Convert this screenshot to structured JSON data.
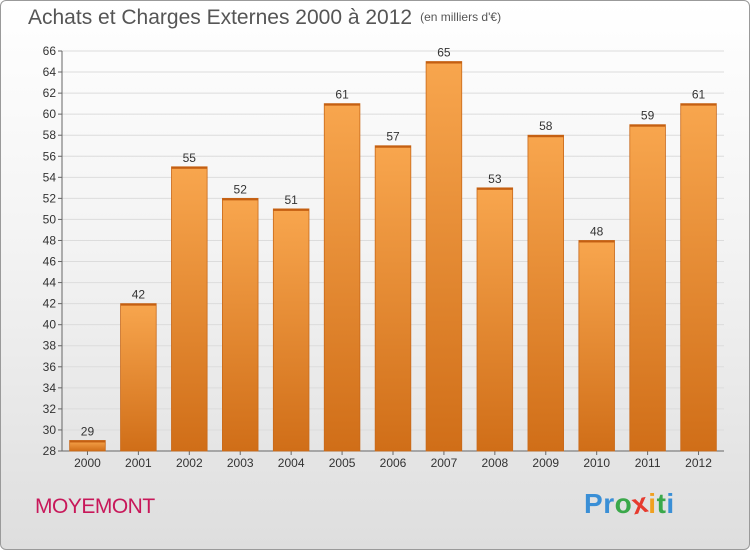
{
  "title": "Achats et Charges Externes 2000 à 2012",
  "subtitle": "(en milliers d'€)",
  "town": "MOYEMONT",
  "logo": {
    "text": "Proxiti",
    "letters": [
      {
        "ch": "P",
        "color": "#3a8fd6"
      },
      {
        "ch": "r",
        "color": "#3a8fd6"
      },
      {
        "ch": "o",
        "color": "#3aa84a"
      },
      {
        "ch": "x",
        "color": "#e63a2e"
      },
      {
        "ch": "i",
        "color": "#f0a020"
      },
      {
        "ch": "t",
        "color": "#3aa84a"
      },
      {
        "ch": "i",
        "color": "#3a8fd6"
      }
    ]
  },
  "colors": {
    "bar_light": "#f8a64e",
    "bar_dark": "#d06e18",
    "grid": "#dcdcdc",
    "axis_text": "#333333",
    "title": "#555555",
    "town": "#c8185a"
  },
  "chart_data": {
    "type": "bar",
    "categories": [
      "2000",
      "2001",
      "2002",
      "2003",
      "2004",
      "2005",
      "2006",
      "2007",
      "2008",
      "2009",
      "2010",
      "2011",
      "2012"
    ],
    "values": [
      29,
      42,
      55,
      52,
      51,
      61,
      57,
      65,
      53,
      58,
      48,
      59,
      61
    ],
    "title": "Achats et Charges Externes 2000 à 2012",
    "subtitle": "(en milliers d'€)",
    "xlabel": "",
    "ylabel": "",
    "ylim": [
      28,
      66
    ],
    "yticks": [
      28,
      30,
      32,
      34,
      36,
      38,
      40,
      42,
      44,
      46,
      48,
      50,
      52,
      54,
      56,
      58,
      60,
      62,
      64,
      66
    ],
    "grid": true,
    "data_labels": true
  }
}
